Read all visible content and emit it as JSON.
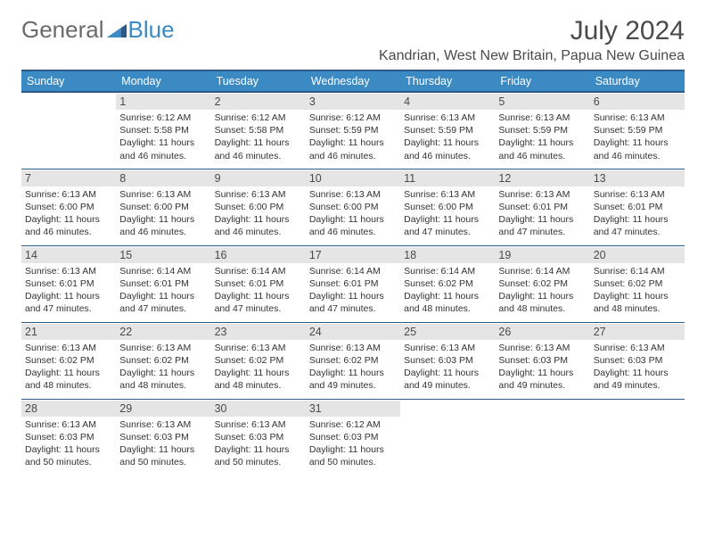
{
  "brand": {
    "word1": "General",
    "word2": "Blue"
  },
  "title": "July 2024",
  "location": "Kandrian, West New Britain, Papua New Guinea",
  "colors": {
    "header_bg": "#3b8ac4",
    "header_border": "#2c5a87",
    "daynum_bg": "#e5e5e5",
    "text": "#333333",
    "title_text": "#4a4a4a"
  },
  "day_headers": [
    "Sunday",
    "Monday",
    "Tuesday",
    "Wednesday",
    "Thursday",
    "Friday",
    "Saturday"
  ],
  "weeks": [
    [
      {
        "n": "",
        "sunrise": "",
        "sunset": "",
        "daylight": ""
      },
      {
        "n": "1",
        "sunrise": "Sunrise: 6:12 AM",
        "sunset": "Sunset: 5:58 PM",
        "daylight": "Daylight: 11 hours and 46 minutes."
      },
      {
        "n": "2",
        "sunrise": "Sunrise: 6:12 AM",
        "sunset": "Sunset: 5:58 PM",
        "daylight": "Daylight: 11 hours and 46 minutes."
      },
      {
        "n": "3",
        "sunrise": "Sunrise: 6:12 AM",
        "sunset": "Sunset: 5:59 PM",
        "daylight": "Daylight: 11 hours and 46 minutes."
      },
      {
        "n": "4",
        "sunrise": "Sunrise: 6:13 AM",
        "sunset": "Sunset: 5:59 PM",
        "daylight": "Daylight: 11 hours and 46 minutes."
      },
      {
        "n": "5",
        "sunrise": "Sunrise: 6:13 AM",
        "sunset": "Sunset: 5:59 PM",
        "daylight": "Daylight: 11 hours and 46 minutes."
      },
      {
        "n": "6",
        "sunrise": "Sunrise: 6:13 AM",
        "sunset": "Sunset: 5:59 PM",
        "daylight": "Daylight: 11 hours and 46 minutes."
      }
    ],
    [
      {
        "n": "7",
        "sunrise": "Sunrise: 6:13 AM",
        "sunset": "Sunset: 6:00 PM",
        "daylight": "Daylight: 11 hours and 46 minutes."
      },
      {
        "n": "8",
        "sunrise": "Sunrise: 6:13 AM",
        "sunset": "Sunset: 6:00 PM",
        "daylight": "Daylight: 11 hours and 46 minutes."
      },
      {
        "n": "9",
        "sunrise": "Sunrise: 6:13 AM",
        "sunset": "Sunset: 6:00 PM",
        "daylight": "Daylight: 11 hours and 46 minutes."
      },
      {
        "n": "10",
        "sunrise": "Sunrise: 6:13 AM",
        "sunset": "Sunset: 6:00 PM",
        "daylight": "Daylight: 11 hours and 46 minutes."
      },
      {
        "n": "11",
        "sunrise": "Sunrise: 6:13 AM",
        "sunset": "Sunset: 6:00 PM",
        "daylight": "Daylight: 11 hours and 47 minutes."
      },
      {
        "n": "12",
        "sunrise": "Sunrise: 6:13 AM",
        "sunset": "Sunset: 6:01 PM",
        "daylight": "Daylight: 11 hours and 47 minutes."
      },
      {
        "n": "13",
        "sunrise": "Sunrise: 6:13 AM",
        "sunset": "Sunset: 6:01 PM",
        "daylight": "Daylight: 11 hours and 47 minutes."
      }
    ],
    [
      {
        "n": "14",
        "sunrise": "Sunrise: 6:13 AM",
        "sunset": "Sunset: 6:01 PM",
        "daylight": "Daylight: 11 hours and 47 minutes."
      },
      {
        "n": "15",
        "sunrise": "Sunrise: 6:14 AM",
        "sunset": "Sunset: 6:01 PM",
        "daylight": "Daylight: 11 hours and 47 minutes."
      },
      {
        "n": "16",
        "sunrise": "Sunrise: 6:14 AM",
        "sunset": "Sunset: 6:01 PM",
        "daylight": "Daylight: 11 hours and 47 minutes."
      },
      {
        "n": "17",
        "sunrise": "Sunrise: 6:14 AM",
        "sunset": "Sunset: 6:01 PM",
        "daylight": "Daylight: 11 hours and 47 minutes."
      },
      {
        "n": "18",
        "sunrise": "Sunrise: 6:14 AM",
        "sunset": "Sunset: 6:02 PM",
        "daylight": "Daylight: 11 hours and 48 minutes."
      },
      {
        "n": "19",
        "sunrise": "Sunrise: 6:14 AM",
        "sunset": "Sunset: 6:02 PM",
        "daylight": "Daylight: 11 hours and 48 minutes."
      },
      {
        "n": "20",
        "sunrise": "Sunrise: 6:14 AM",
        "sunset": "Sunset: 6:02 PM",
        "daylight": "Daylight: 11 hours and 48 minutes."
      }
    ],
    [
      {
        "n": "21",
        "sunrise": "Sunrise: 6:13 AM",
        "sunset": "Sunset: 6:02 PM",
        "daylight": "Daylight: 11 hours and 48 minutes."
      },
      {
        "n": "22",
        "sunrise": "Sunrise: 6:13 AM",
        "sunset": "Sunset: 6:02 PM",
        "daylight": "Daylight: 11 hours and 48 minutes."
      },
      {
        "n": "23",
        "sunrise": "Sunrise: 6:13 AM",
        "sunset": "Sunset: 6:02 PM",
        "daylight": "Daylight: 11 hours and 48 minutes."
      },
      {
        "n": "24",
        "sunrise": "Sunrise: 6:13 AM",
        "sunset": "Sunset: 6:02 PM",
        "daylight": "Daylight: 11 hours and 49 minutes."
      },
      {
        "n": "25",
        "sunrise": "Sunrise: 6:13 AM",
        "sunset": "Sunset: 6:03 PM",
        "daylight": "Daylight: 11 hours and 49 minutes."
      },
      {
        "n": "26",
        "sunrise": "Sunrise: 6:13 AM",
        "sunset": "Sunset: 6:03 PM",
        "daylight": "Daylight: 11 hours and 49 minutes."
      },
      {
        "n": "27",
        "sunrise": "Sunrise: 6:13 AM",
        "sunset": "Sunset: 6:03 PM",
        "daylight": "Daylight: 11 hours and 49 minutes."
      }
    ],
    [
      {
        "n": "28",
        "sunrise": "Sunrise: 6:13 AM",
        "sunset": "Sunset: 6:03 PM",
        "daylight": "Daylight: 11 hours and 50 minutes."
      },
      {
        "n": "29",
        "sunrise": "Sunrise: 6:13 AM",
        "sunset": "Sunset: 6:03 PM",
        "daylight": "Daylight: 11 hours and 50 minutes."
      },
      {
        "n": "30",
        "sunrise": "Sunrise: 6:13 AM",
        "sunset": "Sunset: 6:03 PM",
        "daylight": "Daylight: 11 hours and 50 minutes."
      },
      {
        "n": "31",
        "sunrise": "Sunrise: 6:12 AM",
        "sunset": "Sunset: 6:03 PM",
        "daylight": "Daylight: 11 hours and 50 minutes."
      },
      {
        "n": "",
        "sunrise": "",
        "sunset": "",
        "daylight": ""
      },
      {
        "n": "",
        "sunrise": "",
        "sunset": "",
        "daylight": ""
      },
      {
        "n": "",
        "sunrise": "",
        "sunset": "",
        "daylight": ""
      }
    ]
  ]
}
